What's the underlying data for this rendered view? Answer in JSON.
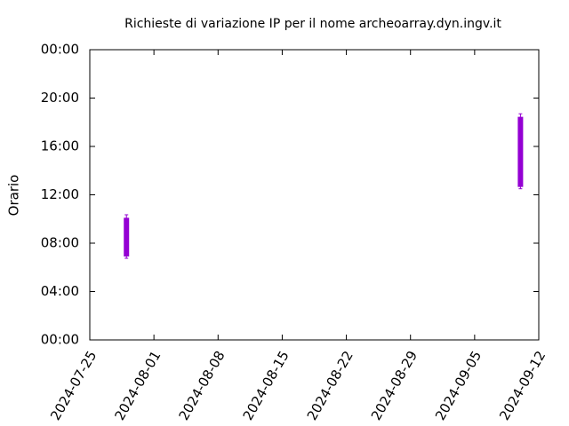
{
  "chart_data": {
    "type": "candlestick",
    "title": "Richieste di variazione IP per il nome archeoarray.dyn.ingv.it",
    "y_label": "Orario",
    "x": [
      "2024-07-29",
      "2024-09-10"
    ],
    "low": [
      6.75,
      12.5
    ],
    "open": [
      6.9,
      12.65
    ],
    "close": [
      10.1,
      18.45
    ],
    "high": [
      10.35,
      18.7
    ],
    "color": "#9400d3",
    "xlim": [
      "2024-07-25",
      "2024-09-12"
    ],
    "xticks": [
      "2024-07-25",
      "2024-08-01",
      "2024-08-08",
      "2024-08-15",
      "2024-08-22",
      "2024-08-29",
      "2024-09-05",
      "2024-09-12"
    ],
    "ylim": [
      0,
      24
    ],
    "yticks": [
      {
        "value": 0,
        "label": "00:00"
      },
      {
        "value": 4,
        "label": "04:00"
      },
      {
        "value": 8,
        "label": "08:00"
      },
      {
        "value": 12,
        "label": "12:00"
      },
      {
        "value": 16,
        "label": "16:00"
      },
      {
        "value": 20,
        "label": "20:00"
      },
      {
        "value": 24,
        "label": "00:00"
      }
    ]
  }
}
